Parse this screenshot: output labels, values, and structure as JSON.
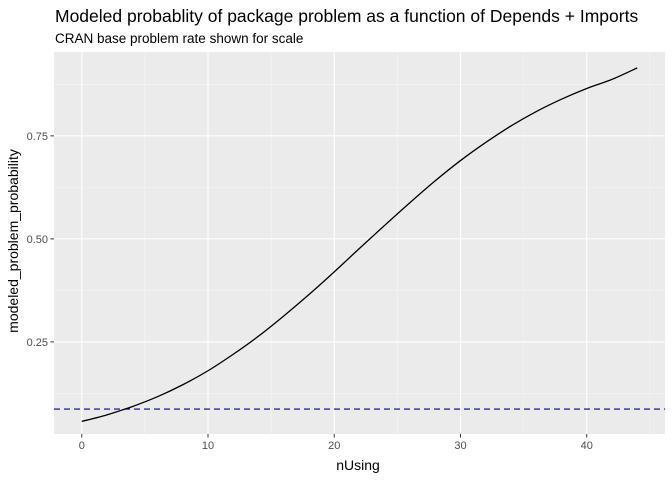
{
  "chart_data": {
    "type": "line",
    "title": "Modeled probablity of package problem as a function of Depends + Imports",
    "subtitle": "CRAN base problem rate shown for scale",
    "xlabel": "nUsing",
    "ylabel": "modeled_problem_probability",
    "xlim": [
      -2.2,
      46.2
    ],
    "ylim": [
      0.0265,
      0.9535
    ],
    "x_ticks": [
      0,
      10,
      20,
      30,
      40
    ],
    "y_ticks": [
      0.25,
      0.5,
      0.75
    ],
    "x_tick_labels": [
      "0",
      "10",
      "20",
      "30",
      "40"
    ],
    "y_tick_labels": [
      "0.25",
      "0.50",
      "0.75"
    ],
    "grid": true,
    "series": [
      {
        "color": "#000000",
        "x": [
          0,
          2,
          4,
          6,
          8,
          10,
          12,
          14,
          16,
          18,
          20,
          22,
          24,
          26,
          28,
          30,
          32,
          34,
          36,
          38,
          40,
          42,
          44
        ],
        "y": [
          0.057,
          0.073,
          0.093,
          0.117,
          0.146,
          0.18,
          0.22,
          0.264,
          0.313,
          0.365,
          0.42,
          0.477,
          0.533,
          0.588,
          0.641,
          0.69,
          0.734,
          0.774,
          0.809,
          0.839,
          0.865,
          0.887,
          0.915
        ]
      }
    ],
    "reference_line": {
      "y": 0.087,
      "color": "#00008b",
      "style": "dashed"
    }
  }
}
